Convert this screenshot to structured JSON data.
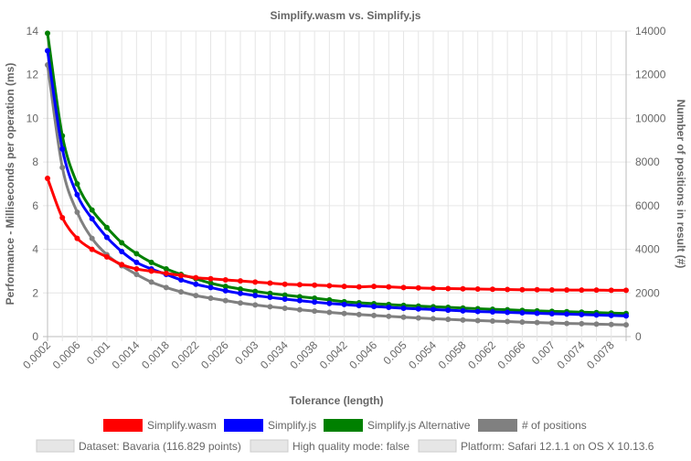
{
  "chart_data": {
    "type": "line",
    "title": "Simplify.wasm vs. Simplify.js",
    "xlabel": "Tolerance (length)",
    "ylabel_left": "Performance - Milliseconds per operation (ms)",
    "ylabel_right": "Number of positions in result (#)",
    "y_left_lim": [
      0,
      14
    ],
    "y_left_ticks": [
      "0",
      "2",
      "4",
      "6",
      "8",
      "10",
      "12",
      "14"
    ],
    "y_right_lim": [
      0,
      14000
    ],
    "y_right_ticks": [
      "0",
      "2000",
      "4000",
      "6000",
      "8000",
      "10000",
      "12000",
      "14000"
    ],
    "x_tick_labels": [
      "0.0002",
      "0.0006",
      "0.001",
      "0.0014",
      "0.0018",
      "0.0022",
      "0.0026",
      "0.003",
      "0.0034",
      "0.0038",
      "0.0042",
      "0.0046",
      "0.005",
      "0.0054",
      "0.0058",
      "0.0062",
      "0.0066",
      "0.007",
      "0.0074",
      "0.0078"
    ],
    "x": [
      0.0002,
      0.0004,
      0.0006,
      0.0008,
      0.001,
      0.0012,
      0.0014,
      0.0016,
      0.0018,
      0.002,
      0.0022,
      0.0024,
      0.0026,
      0.0028,
      0.003,
      0.0032,
      0.0034,
      0.0036,
      0.0038,
      0.004,
      0.0042,
      0.0044,
      0.0046,
      0.0048,
      0.005,
      0.0052,
      0.0054,
      0.0056,
      0.0058,
      0.006,
      0.0062,
      0.0064,
      0.0066,
      0.0068,
      0.007,
      0.0072,
      0.0074,
      0.0076,
      0.0078,
      0.008
    ],
    "grid": true,
    "legend_position": "bottom",
    "series": [
      {
        "name": "Simplify.wasm",
        "color": "#ff0000",
        "axis": "left",
        "values": [
          7.25,
          5.45,
          4.5,
          4.0,
          3.65,
          3.3,
          3.1,
          3.0,
          2.9,
          2.8,
          2.7,
          2.65,
          2.6,
          2.55,
          2.5,
          2.45,
          2.4,
          2.38,
          2.36,
          2.33,
          2.3,
          2.28,
          2.3,
          2.28,
          2.25,
          2.23,
          2.21,
          2.2,
          2.19,
          2.18,
          2.17,
          2.16,
          2.15,
          2.15,
          2.14,
          2.14,
          2.13,
          2.13,
          2.12,
          2.12
        ]
      },
      {
        "name": "Simplify.js",
        "color": "#0000ff",
        "axis": "left",
        "values": [
          13.1,
          8.6,
          6.5,
          5.4,
          4.55,
          3.9,
          3.4,
          3.1,
          2.85,
          2.6,
          2.4,
          2.25,
          2.1,
          1.98,
          1.88,
          1.8,
          1.72,
          1.65,
          1.58,
          1.52,
          1.47,
          1.42,
          1.38,
          1.34,
          1.3,
          1.27,
          1.24,
          1.21,
          1.18,
          1.15,
          1.13,
          1.11,
          1.09,
          1.07,
          1.05,
          1.03,
          1.01,
          0.99,
          0.97,
          0.95
        ]
      },
      {
        "name": "Simplify.js Alternative",
        "color": "#008000",
        "axis": "left",
        "values": [
          13.9,
          9.2,
          7.0,
          5.8,
          5.0,
          4.3,
          3.8,
          3.4,
          3.1,
          2.85,
          2.65,
          2.45,
          2.3,
          2.18,
          2.07,
          1.98,
          1.9,
          1.83,
          1.76,
          1.68,
          1.6,
          1.55,
          1.51,
          1.47,
          1.43,
          1.4,
          1.37,
          1.34,
          1.31,
          1.28,
          1.25,
          1.23,
          1.2,
          1.18,
          1.16,
          1.14,
          1.12,
          1.1,
          1.08,
          1.06
        ]
      },
      {
        "name": "# of positions",
        "color": "#808080",
        "axis": "right",
        "values": [
          12450,
          7750,
          5700,
          4500,
          3750,
          3250,
          2850,
          2500,
          2250,
          2050,
          1880,
          1760,
          1650,
          1540,
          1450,
          1370,
          1300,
          1230,
          1170,
          1110,
          1060,
          1010,
          970,
          930,
          890,
          855,
          820,
          790,
          760,
          735,
          710,
          690,
          665,
          645,
          625,
          605,
          590,
          570,
          555,
          540
        ]
      }
    ],
    "info_boxes": [
      "Dataset: Bavaria (116.829 points)",
      "High quality mode: false",
      "Platform: Safari 12.1.1 on OS X 10.13.6"
    ]
  }
}
